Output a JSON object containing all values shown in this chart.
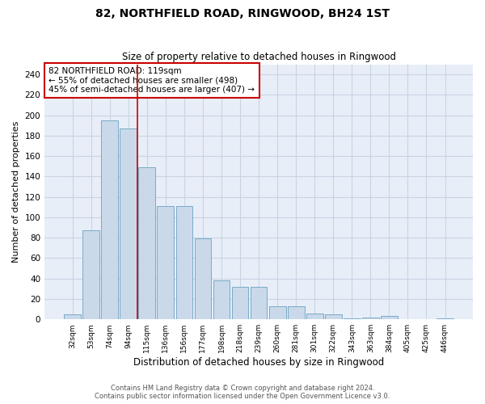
{
  "title": "82, NORTHFIELD ROAD, RINGWOOD, BH24 1ST",
  "subtitle": "Size of property relative to detached houses in Ringwood",
  "xlabel": "Distribution of detached houses by size in Ringwood",
  "ylabel": "Number of detached properties",
  "categories": [
    "32sqm",
    "53sqm",
    "74sqm",
    "94sqm",
    "115sqm",
    "136sqm",
    "156sqm",
    "177sqm",
    "198sqm",
    "218sqm",
    "239sqm",
    "260sqm",
    "281sqm",
    "301sqm",
    "322sqm",
    "343sqm",
    "363sqm",
    "384sqm",
    "405sqm",
    "425sqm",
    "446sqm"
  ],
  "values": [
    5,
    87,
    195,
    187,
    149,
    111,
    111,
    79,
    38,
    32,
    32,
    13,
    13,
    6,
    5,
    1,
    2,
    3,
    0,
    0,
    1
  ],
  "bar_color": "#c9d9ea",
  "bar_edge_color": "#7aaac8",
  "grid_color": "#c8d4e4",
  "background_color": "#e8eef8",
  "property_line_color": "#cc0000",
  "annotation_text": "82 NORTHFIELD ROAD: 119sqm\n← 55% of detached houses are smaller (498)\n45% of semi-detached houses are larger (407) →",
  "annotation_box_color": "#ffffff",
  "annotation_box_edge_color": "#cc0000",
  "footer_line1": "Contains HM Land Registry data © Crown copyright and database right 2024.",
  "footer_line2": "Contains public sector information licensed under the Open Government Licence v3.0.",
  "ylim_max": 250,
  "yticks": [
    0,
    20,
    40,
    60,
    80,
    100,
    120,
    140,
    160,
    180,
    200,
    220,
    240
  ]
}
